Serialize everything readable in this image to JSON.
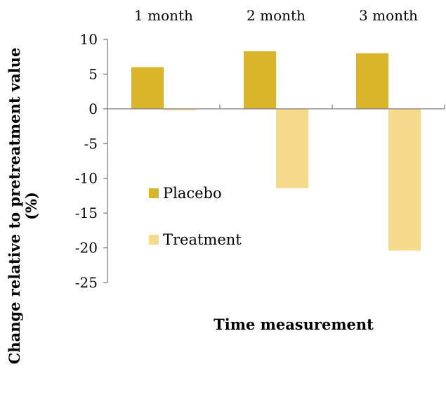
{
  "chart_data": {
    "type": "bar",
    "categories": [
      "1 month",
      "2 month",
      "3 month"
    ],
    "series": [
      {
        "name": "Placebo",
        "values": [
          6.0,
          8.3,
          8.0
        ],
        "color": "#DAB52A"
      },
      {
        "name": "Treatment",
        "values": [
          -0.2,
          -11.4,
          -20.4
        ],
        "color": "#F6D98A"
      }
    ],
    "title": "",
    "xlabel": "Time measurement",
    "ylabel_line1": "Change relative to pretreatment value",
    "ylabel_line2": "(%)",
    "ylim": [
      -25,
      10
    ],
    "yticks": [
      10,
      5,
      0,
      -5,
      -10,
      -15,
      -20,
      -25
    ],
    "ytick_labels": [
      "10",
      "5",
      "0",
      "-5",
      "-10",
      "-15",
      "-20",
      "-25"
    ],
    "category_labels_position": "top",
    "legend_position": "inside-left",
    "grid": false,
    "axis_color": "#808080"
  }
}
